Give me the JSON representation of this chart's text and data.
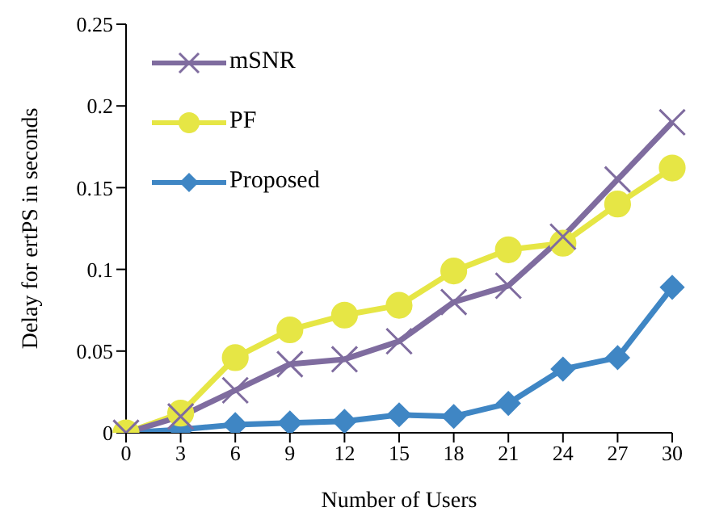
{
  "chart_data": {
    "type": "line",
    "xlabel": "Number of Users",
    "ylabel": "Delay for ertPS in seconds",
    "categories": [
      "0",
      "3",
      "6",
      "9",
      "12",
      "15",
      "18",
      "21",
      "24",
      "27",
      "30"
    ],
    "series": [
      {
        "name": "mSNR",
        "color": "#7f6c9f",
        "marker": "cross",
        "values": [
          0,
          0.01,
          0.026,
          0.042,
          0.045,
          0.056,
          0.08,
          0.09,
          0.12,
          0.155,
          0.19
        ]
      },
      {
        "name": "PF",
        "color": "#e6e645",
        "marker": "circle",
        "values": [
          0,
          0.012,
          0.046,
          0.063,
          0.072,
          0.078,
          0.099,
          0.112,
          0.116,
          0.14,
          0.162
        ]
      },
      {
        "name": "Proposed",
        "color": "#3f86c4",
        "marker": "diamond",
        "values": [
          0,
          0.002,
          0.005,
          0.006,
          0.007,
          0.011,
          0.01,
          0.018,
          0.039,
          0.046,
          0.089
        ]
      }
    ],
    "ylim": [
      0,
      0.25
    ],
    "yticks": [
      0,
      0.05,
      0.1,
      0.15,
      0.2,
      0.25
    ],
    "grid": false,
    "legend": "top left"
  }
}
